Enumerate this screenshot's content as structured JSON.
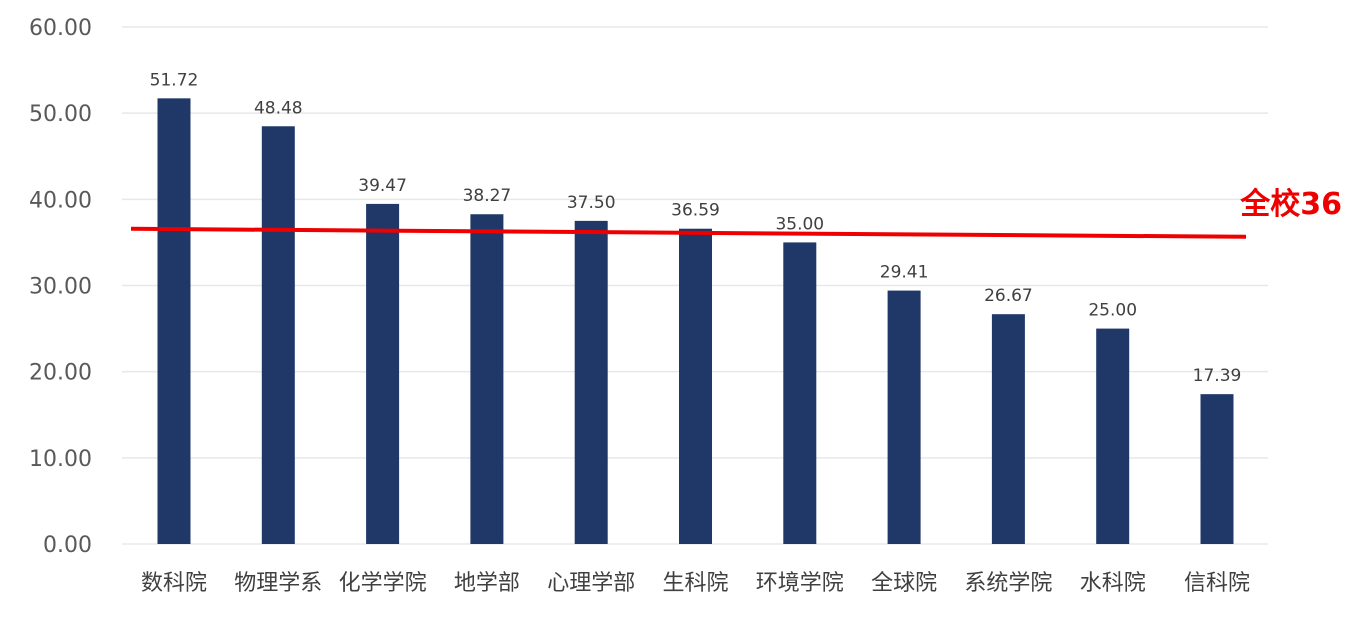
{
  "chart_data": {
    "type": "bar",
    "categories": [
      "数科院",
      "物理学系",
      "化学学院",
      "地学部",
      "心理学部",
      "生科院",
      "环境学院",
      "全球院",
      "系统学院",
      "水科院",
      "信科院"
    ],
    "values": [
      51.72,
      48.48,
      39.47,
      38.27,
      37.5,
      36.59,
      35.0,
      29.41,
      26.67,
      25.0,
      17.39
    ],
    "value_labels": [
      "51.72",
      "48.48",
      "39.47",
      "38.27",
      "37.50",
      "36.59",
      "35.00",
      "29.41",
      "26.67",
      "25.00",
      "17.39"
    ],
    "ylim": [
      0,
      60
    ],
    "yticks": [
      0,
      10,
      20,
      30,
      40,
      50,
      60
    ],
    "ytick_labels": [
      "0.00",
      "10.00",
      "20.00",
      "30.00",
      "40.00",
      "50.00",
      "60.00"
    ],
    "title": "",
    "xlabel": "",
    "ylabel": "",
    "grid": true,
    "legend": "none",
    "reference_line": {
      "label": "全校36",
      "value": 36
    },
    "colors": {
      "bar": "#1f3868",
      "reference": "#ee0000",
      "grid": "#e8e8e8"
    }
  }
}
